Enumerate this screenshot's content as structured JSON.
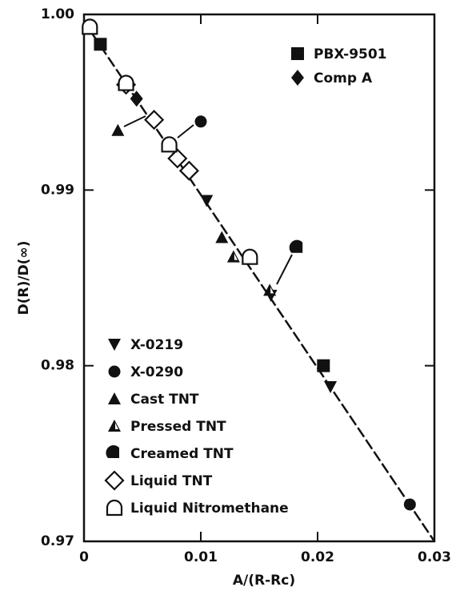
{
  "chart_data": {
    "type": "scatter",
    "xlabel": "A/(R-Rc)",
    "ylabel": "D(R)/D(∞)",
    "xlim": [
      0,
      0.03
    ],
    "ylim": [
      0.97,
      1.0
    ],
    "xticks": [
      0,
      0.01,
      0.02,
      0.03
    ],
    "yticks": [
      0.97,
      0.98,
      0.99,
      {
        "value": 1.0,
        "label": "1.00"
      }
    ],
    "line": {
      "x": [
        0,
        0.03
      ],
      "y": [
        0.9996,
        0.97
      ]
    },
    "series": [
      {
        "name": "PBX-9501",
        "marker": "square",
        "color": "#111",
        "x": [
          0.0014,
          0.0205
        ],
        "values": [
          0.9983,
          0.98
        ]
      },
      {
        "name": "Comp A",
        "marker": "diamond",
        "color": "#111",
        "x": [
          0.0045
        ],
        "values": [
          0.9952
        ]
      },
      {
        "name": "X-0219",
        "marker": "triangle-down",
        "color": "#111",
        "x": [
          0.0105,
          0.016,
          0.0211
        ],
        "values": [
          0.9894,
          0.984,
          0.9788
        ]
      },
      {
        "name": "X-0290",
        "marker": "circle",
        "color": "#111",
        "x": [
          0.01,
          0.0279
        ],
        "values": [
          0.9939,
          0.9721
        ]
      },
      {
        "name": "Cast TNT",
        "marker": "triangle",
        "color": "#111",
        "x": [
          0.0029,
          0.0118
        ],
        "values": [
          0.9934,
          0.9873
        ]
      },
      {
        "name": "Pressed TNT",
        "marker": "half-triangle",
        "color": "#111",
        "x": [
          0.0128,
          0.0159
        ],
        "values": [
          0.9862,
          0.9843
        ]
      },
      {
        "name": "Creamed TNT",
        "marker": "half-circle",
        "color": "#111",
        "x": [
          0.0183
        ],
        "values": [
          0.9867
        ]
      },
      {
        "name": "Liquid TNT",
        "marker": "open-diamond",
        "color": "#111",
        "x": [
          0.0036,
          0.006,
          0.008,
          0.009
        ],
        "values": [
          0.996,
          0.994,
          0.9918,
          0.9911
        ]
      },
      {
        "name": "Liquid Nitromethane",
        "marker": "open-d",
        "color": "#111",
        "x": [
          0.0005,
          0.0036,
          0.0073,
          0.0142
        ],
        "values": [
          0.9993,
          0.9961,
          0.9926,
          0.9862
        ]
      }
    ]
  }
}
